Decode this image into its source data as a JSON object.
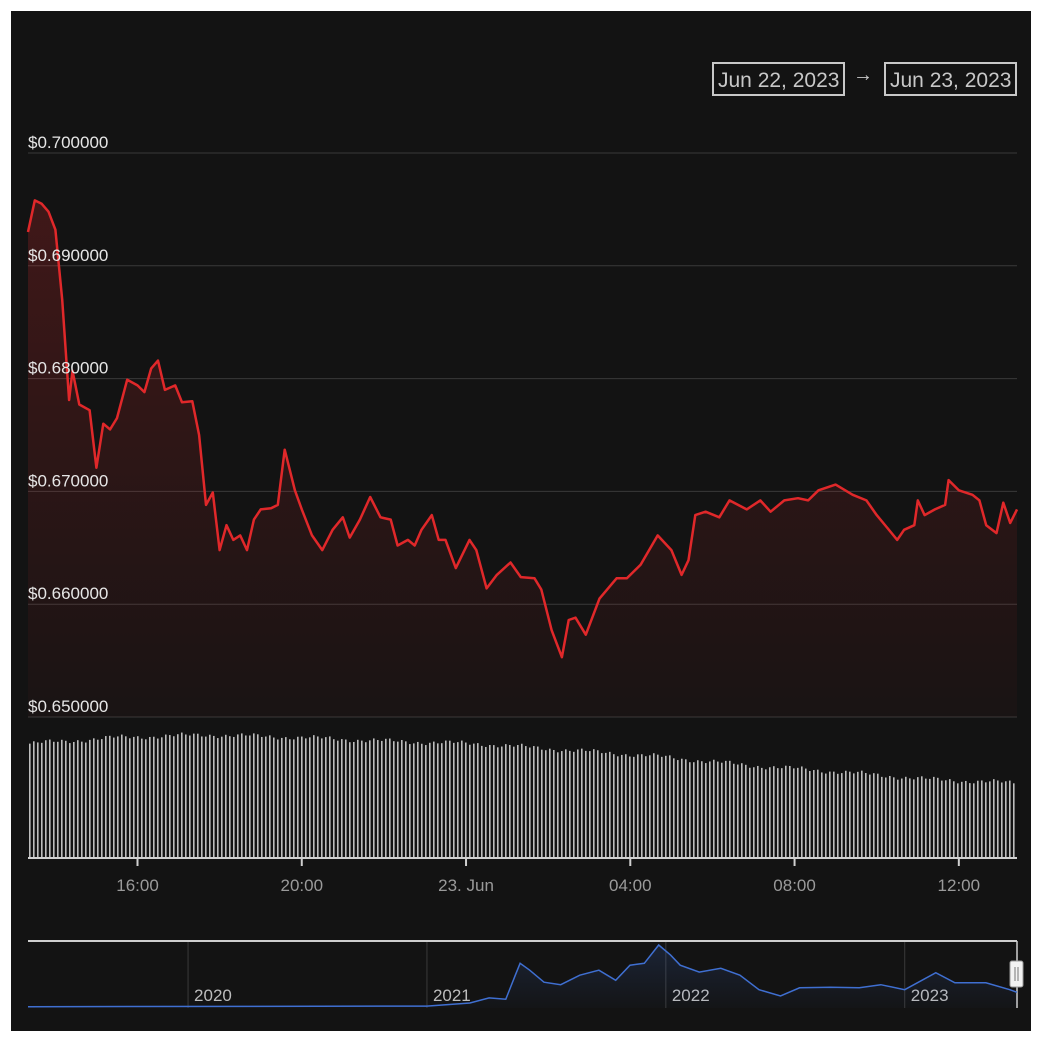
{
  "range_selector": {
    "from": "Jun 22, 2023",
    "arrow": "→",
    "to": "Jun 23, 2023"
  },
  "chart_data": {
    "type": "line",
    "colors": {
      "price_line": "#e0282a",
      "volume": "#bdbdbd",
      "navigator_line": "#3f6fd1",
      "background": "#131313"
    },
    "ylim": [
      0.65,
      0.7
    ],
    "y_ticks": [
      "$0.650000",
      "$0.660000",
      "$0.670000",
      "$0.680000",
      "$0.690000",
      "$0.700000"
    ],
    "y_tick_values": [
      0.65,
      0.66,
      0.67,
      0.68,
      0.69,
      0.7
    ],
    "x_ticks": [
      {
        "label": "16:00",
        "t": "2023-06-22 16:00"
      },
      {
        "label": "20:00",
        "t": "2023-06-22 20:00"
      },
      {
        "label": "23. Jun",
        "t": "2023-06-23 00:00"
      },
      {
        "label": "04:00",
        "t": "2023-06-23 04:00"
      },
      {
        "label": "08:00",
        "t": "2023-06-23 08:00"
      },
      {
        "label": "12:00",
        "t": "2023-06-23 12:00"
      }
    ],
    "xlim": [
      "2023-06-22 13:20",
      "2023-06-23 13:25"
    ],
    "grid": true,
    "series": [
      {
        "values": [
          [
            "2023-06-22 13:20",
            0.693
          ],
          [
            "2023-06-22 13:30",
            0.6958
          ],
          [
            "2023-06-22 13:40",
            0.6955
          ],
          [
            "2023-06-22 13:50",
            0.6948
          ],
          [
            "2023-06-22 14:00",
            0.6932
          ],
          [
            "2023-06-22 14:10",
            0.687
          ],
          [
            "2023-06-22 14:20",
            0.6781
          ],
          [
            "2023-06-22 14:25",
            0.6807
          ],
          [
            "2023-06-22 14:35",
            0.6777
          ],
          [
            "2023-06-22 14:50",
            0.6772
          ],
          [
            "2023-06-22 15:00",
            0.6721
          ],
          [
            "2023-06-22 15:10",
            0.676
          ],
          [
            "2023-06-22 15:20",
            0.6755
          ],
          [
            "2023-06-22 15:30",
            0.6765
          ],
          [
            "2023-06-22 15:45",
            0.6799
          ],
          [
            "2023-06-22 16:00",
            0.6794
          ],
          [
            "2023-06-22 16:10",
            0.6788
          ],
          [
            "2023-06-22 16:20",
            0.6809
          ],
          [
            "2023-06-22 16:30",
            0.6816
          ],
          [
            "2023-06-22 16:40",
            0.679
          ],
          [
            "2023-06-22 16:55",
            0.6794
          ],
          [
            "2023-06-22 17:05",
            0.6779
          ],
          [
            "2023-06-22 17:20",
            0.678
          ],
          [
            "2023-06-22 17:30",
            0.675
          ],
          [
            "2023-06-22 17:40",
            0.6688
          ],
          [
            "2023-06-22 17:50",
            0.6699
          ],
          [
            "2023-06-22 18:00",
            0.6648
          ],
          [
            "2023-06-22 18:10",
            0.667
          ],
          [
            "2023-06-22 18:20",
            0.6657
          ],
          [
            "2023-06-22 18:30",
            0.6661
          ],
          [
            "2023-06-22 18:40",
            0.6648
          ],
          [
            "2023-06-22 18:50",
            0.6675
          ],
          [
            "2023-06-22 19:00",
            0.6684
          ],
          [
            "2023-06-22 19:15",
            0.6685
          ],
          [
            "2023-06-22 19:25",
            0.6688
          ],
          [
            "2023-06-22 19:35",
            0.6737
          ],
          [
            "2023-06-22 19:50",
            0.6701
          ],
          [
            "2023-06-22 20:00",
            0.6684
          ],
          [
            "2023-06-22 20:15",
            0.6661
          ],
          [
            "2023-06-22 20:30",
            0.6648
          ],
          [
            "2023-06-22 20:45",
            0.6666
          ],
          [
            "2023-06-22 21:00",
            0.6677
          ],
          [
            "2023-06-22 21:10",
            0.6659
          ],
          [
            "2023-06-22 21:25",
            0.6675
          ],
          [
            "2023-06-22 21:40",
            0.6695
          ],
          [
            "2023-06-22 21:55",
            0.6677
          ],
          [
            "2023-06-22 22:10",
            0.6675
          ],
          [
            "2023-06-22 22:20",
            0.6652
          ],
          [
            "2023-06-22 22:35",
            0.6657
          ],
          [
            "2023-06-22 22:45",
            0.6652
          ],
          [
            "2023-06-22 22:55",
            0.6666
          ],
          [
            "2023-06-22 23:10",
            0.6679
          ],
          [
            "2023-06-22 23:20",
            0.6657
          ],
          [
            "2023-06-22 23:30",
            0.6657
          ],
          [
            "2023-06-22 23:45",
            0.6632
          ],
          [
            "2023-06-23 00:05",
            0.6657
          ],
          [
            "2023-06-23 00:15",
            0.6648
          ],
          [
            "2023-06-23 00:30",
            0.6614
          ],
          [
            "2023-06-23 00:45",
            0.6626
          ],
          [
            "2023-06-23 01:05",
            0.6637
          ],
          [
            "2023-06-23 01:20",
            0.6624
          ],
          [
            "2023-06-23 01:40",
            0.6623
          ],
          [
            "2023-06-23 01:50",
            0.6613
          ],
          [
            "2023-06-23 02:05",
            0.6577
          ],
          [
            "2023-06-23 02:20",
            0.6553
          ],
          [
            "2023-06-23 02:30",
            0.6586
          ],
          [
            "2023-06-23 02:40",
            0.6588
          ],
          [
            "2023-06-23 02:55",
            0.6573
          ],
          [
            "2023-06-23 03:15",
            0.6605
          ],
          [
            "2023-06-23 03:40",
            0.6623
          ],
          [
            "2023-06-23 03:55",
            0.6623
          ],
          [
            "2023-06-23 04:15",
            0.6635
          ],
          [
            "2023-06-23 04:40",
            0.6661
          ],
          [
            "2023-06-23 05:00",
            0.6648
          ],
          [
            "2023-06-23 05:15",
            0.6626
          ],
          [
            "2023-06-23 05:25",
            0.6639
          ],
          [
            "2023-06-23 05:35",
            0.6679
          ],
          [
            "2023-06-23 05:50",
            0.6682
          ],
          [
            "2023-06-23 06:10",
            0.6677
          ],
          [
            "2023-06-23 06:25",
            0.6692
          ],
          [
            "2023-06-23 06:50",
            0.6684
          ],
          [
            "2023-06-23 07:10",
            0.6692
          ],
          [
            "2023-06-23 07:25",
            0.6682
          ],
          [
            "2023-06-23 07:45",
            0.6692
          ],
          [
            "2023-06-23 08:05",
            0.6694
          ],
          [
            "2023-06-23 08:20",
            0.6692
          ],
          [
            "2023-06-23 08:35",
            0.6701
          ],
          [
            "2023-06-23 09:00",
            0.6706
          ],
          [
            "2023-06-23 09:25",
            0.6697
          ],
          [
            "2023-06-23 09:45",
            0.6692
          ],
          [
            "2023-06-23 10:00",
            0.6679
          ],
          [
            "2023-06-23 10:15",
            0.6668
          ],
          [
            "2023-06-23 10:30",
            0.6657
          ],
          [
            "2023-06-23 10:40",
            0.6666
          ],
          [
            "2023-06-23 10:55",
            0.667
          ],
          [
            "2023-06-23 11:00",
            0.6692
          ],
          [
            "2023-06-23 11:10",
            0.6679
          ],
          [
            "2023-06-23 11:25",
            0.6684
          ],
          [
            "2023-06-23 11:40",
            0.6688
          ],
          [
            "2023-06-23 11:45",
            0.671
          ],
          [
            "2023-06-23 12:00",
            0.6701
          ],
          [
            "2023-06-23 12:20",
            0.6697
          ],
          [
            "2023-06-23 12:30",
            0.6692
          ],
          [
            "2023-06-23 12:40",
            0.667
          ],
          [
            "2023-06-23 12:55",
            0.6663
          ],
          [
            "2023-06-23 13:05",
            0.669
          ],
          [
            "2023-06-23 13:15",
            0.6672
          ],
          [
            "2023-06-23 13:25",
            0.6684
          ]
        ]
      }
    ],
    "volume_relative": [
      0.9,
      0.95,
      0.97,
      0.95,
      0.92,
      0.9,
      0.85,
      0.8,
      0.73,
      0.68,
      0.62,
      0.59
    ],
    "navigator": {
      "x_ticks": [
        "2020",
        "2021",
        "2022",
        "2023"
      ],
      "x_tick_values": [
        2020,
        2021,
        2022,
        2023
      ],
      "xlim": [
        2019.33,
        2023.47
      ],
      "values_relative": [
        [
          2019.33,
          0.02
        ],
        [
          2021.0,
          0.03
        ],
        [
          2021.18,
          0.08
        ],
        [
          2021.26,
          0.16
        ],
        [
          2021.33,
          0.14
        ],
        [
          2021.37,
          0.52
        ],
        [
          2021.39,
          0.71
        ],
        [
          2021.43,
          0.6
        ],
        [
          2021.49,
          0.41
        ],
        [
          2021.56,
          0.37
        ],
        [
          2021.64,
          0.52
        ],
        [
          2021.72,
          0.6
        ],
        [
          2021.79,
          0.44
        ],
        [
          2021.85,
          0.68
        ],
        [
          2021.91,
          0.71
        ],
        [
          2021.97,
          1.0
        ],
        [
          2022.02,
          0.84
        ],
        [
          2022.06,
          0.68
        ],
        [
          2022.14,
          0.57
        ],
        [
          2022.23,
          0.63
        ],
        [
          2022.31,
          0.52
        ],
        [
          2022.39,
          0.29
        ],
        [
          2022.48,
          0.19
        ],
        [
          2022.56,
          0.32
        ],
        [
          2022.69,
          0.33
        ],
        [
          2022.81,
          0.32
        ],
        [
          2022.9,
          0.37
        ],
        [
          2023.0,
          0.29
        ],
        [
          2023.13,
          0.56
        ],
        [
          2023.21,
          0.4
        ],
        [
          2023.34,
          0.4
        ],
        [
          2023.44,
          0.29
        ],
        [
          2023.47,
          0.25
        ]
      ]
    }
  }
}
